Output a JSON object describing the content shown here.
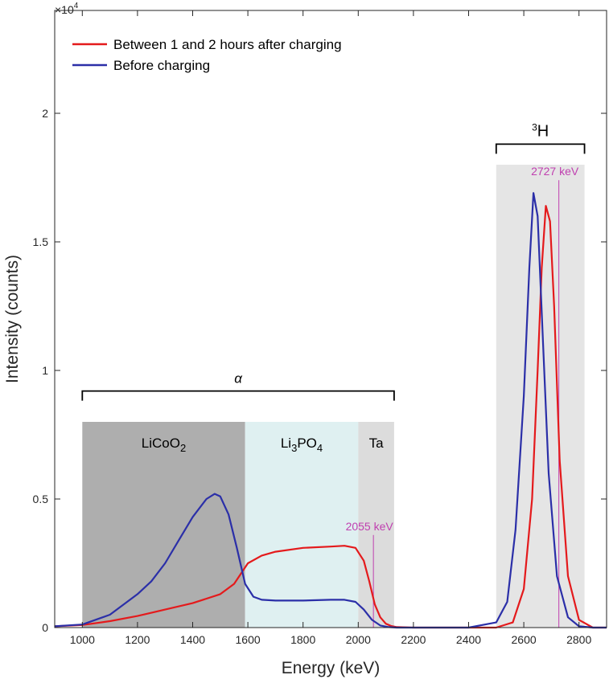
{
  "chart_data": {
    "type": "line",
    "title": "",
    "xlabel": "Energy (keV)",
    "ylabel": "Intensity (counts)",
    "y_exponent_label": "×10",
    "y_exponent_power": "4",
    "xlim": [
      900,
      2900
    ],
    "ylim": [
      0,
      24000
    ],
    "xticks": [
      1000,
      1200,
      1400,
      1600,
      1800,
      2000,
      2200,
      2400,
      2600,
      2800
    ],
    "xtick_labels": [
      "1000",
      "1200",
      "1400",
      "1600",
      "1800",
      "2000",
      "2200",
      "2400",
      "2600",
      "2800"
    ],
    "yticks": [
      0,
      5000,
      10000,
      15000,
      20000
    ],
    "ytick_labels": [
      "0",
      "0.5",
      "1",
      "1.5",
      "2"
    ],
    "legend": {
      "placement": "top-left",
      "entries": [
        {
          "name": "Between 1 and 2 hours after charging",
          "color": "#e41a1c"
        },
        {
          "name": "Before charging",
          "color": "#2b2fa8"
        }
      ]
    },
    "regions": [
      {
        "label": "LiCoO",
        "sub": "2",
        "label_suffix": "",
        "x0": 1000,
        "x1": 1590,
        "y_top": 8000,
        "color": "#aeaeae"
      },
      {
        "label": "Li",
        "sub": "3",
        "label_suffix": "PO",
        "sub2": "4",
        "x0": 1590,
        "x1": 2000,
        "y_top": 8000,
        "color": "#dff0f1"
      },
      {
        "label": "Ta",
        "x0": 2000,
        "x1": 2130,
        "y_top": 8000,
        "color": "#dcdcdc"
      },
      {
        "label": "",
        "x0": 2500,
        "x1": 2820,
        "y_top": 18000,
        "color": "#e5e5e5"
      }
    ],
    "brackets": [
      {
        "label": "α",
        "x0": 1000,
        "x1": 2130,
        "y": 9200
      },
      {
        "label_sup": "3",
        "label": "H",
        "x0": 2500,
        "x1": 2820,
        "y": 18800
      }
    ],
    "reference_lines": [
      {
        "x": 2055,
        "label": "2055 keV",
        "y_top": 3600,
        "color": "#c040b0"
      },
      {
        "x": 2727,
        "label": "2727 keV",
        "y_top": 17400,
        "color": "#c040b0"
      }
    ],
    "series": [
      {
        "name": "Between 1 and 2 hours after charging",
        "color": "#e41a1c",
        "x": [
          900,
          1000,
          1100,
          1200,
          1300,
          1400,
          1500,
          1550,
          1600,
          1650,
          1700,
          1800,
          1900,
          1950,
          1990,
          2020,
          2040,
          2060,
          2080,
          2100,
          2120,
          2140,
          2200,
          2400,
          2500,
          2560,
          2600,
          2630,
          2650,
          2665,
          2680,
          2695,
          2710,
          2730,
          2760,
          2800,
          2850,
          2900
        ],
        "y": [
          50,
          100,
          250,
          450,
          700,
          950,
          1300,
          1700,
          2500,
          2800,
          2950,
          3100,
          3150,
          3180,
          3100,
          2600,
          1800,
          900,
          400,
          150,
          60,
          20,
          0,
          0,
          0,
          200,
          1500,
          5000,
          10000,
          14000,
          16400,
          15800,
          12500,
          6500,
          2000,
          300,
          0,
          0
        ]
      },
      {
        "name": "Before charging",
        "color": "#2b2fa8",
        "x": [
          900,
          1000,
          1100,
          1200,
          1250,
          1300,
          1350,
          1400,
          1450,
          1480,
          1500,
          1530,
          1560,
          1590,
          1620,
          1650,
          1700,
          1800,
          1900,
          1950,
          1990,
          2020,
          2050,
          2080,
          2110,
          2140,
          2200,
          2400,
          2500,
          2540,
          2570,
          2600,
          2620,
          2635,
          2650,
          2670,
          2690,
          2720,
          2760,
          2800,
          2850,
          2900
        ],
        "y": [
          50,
          120,
          500,
          1300,
          1800,
          2500,
          3400,
          4300,
          5000,
          5200,
          5100,
          4400,
          3100,
          1700,
          1200,
          1080,
          1050,
          1050,
          1080,
          1080,
          1000,
          700,
          300,
          80,
          20,
          0,
          0,
          0,
          200,
          1000,
          3800,
          9000,
          14000,
          16900,
          16000,
          11000,
          6000,
          2000,
          400,
          50,
          0,
          0
        ]
      }
    ]
  }
}
